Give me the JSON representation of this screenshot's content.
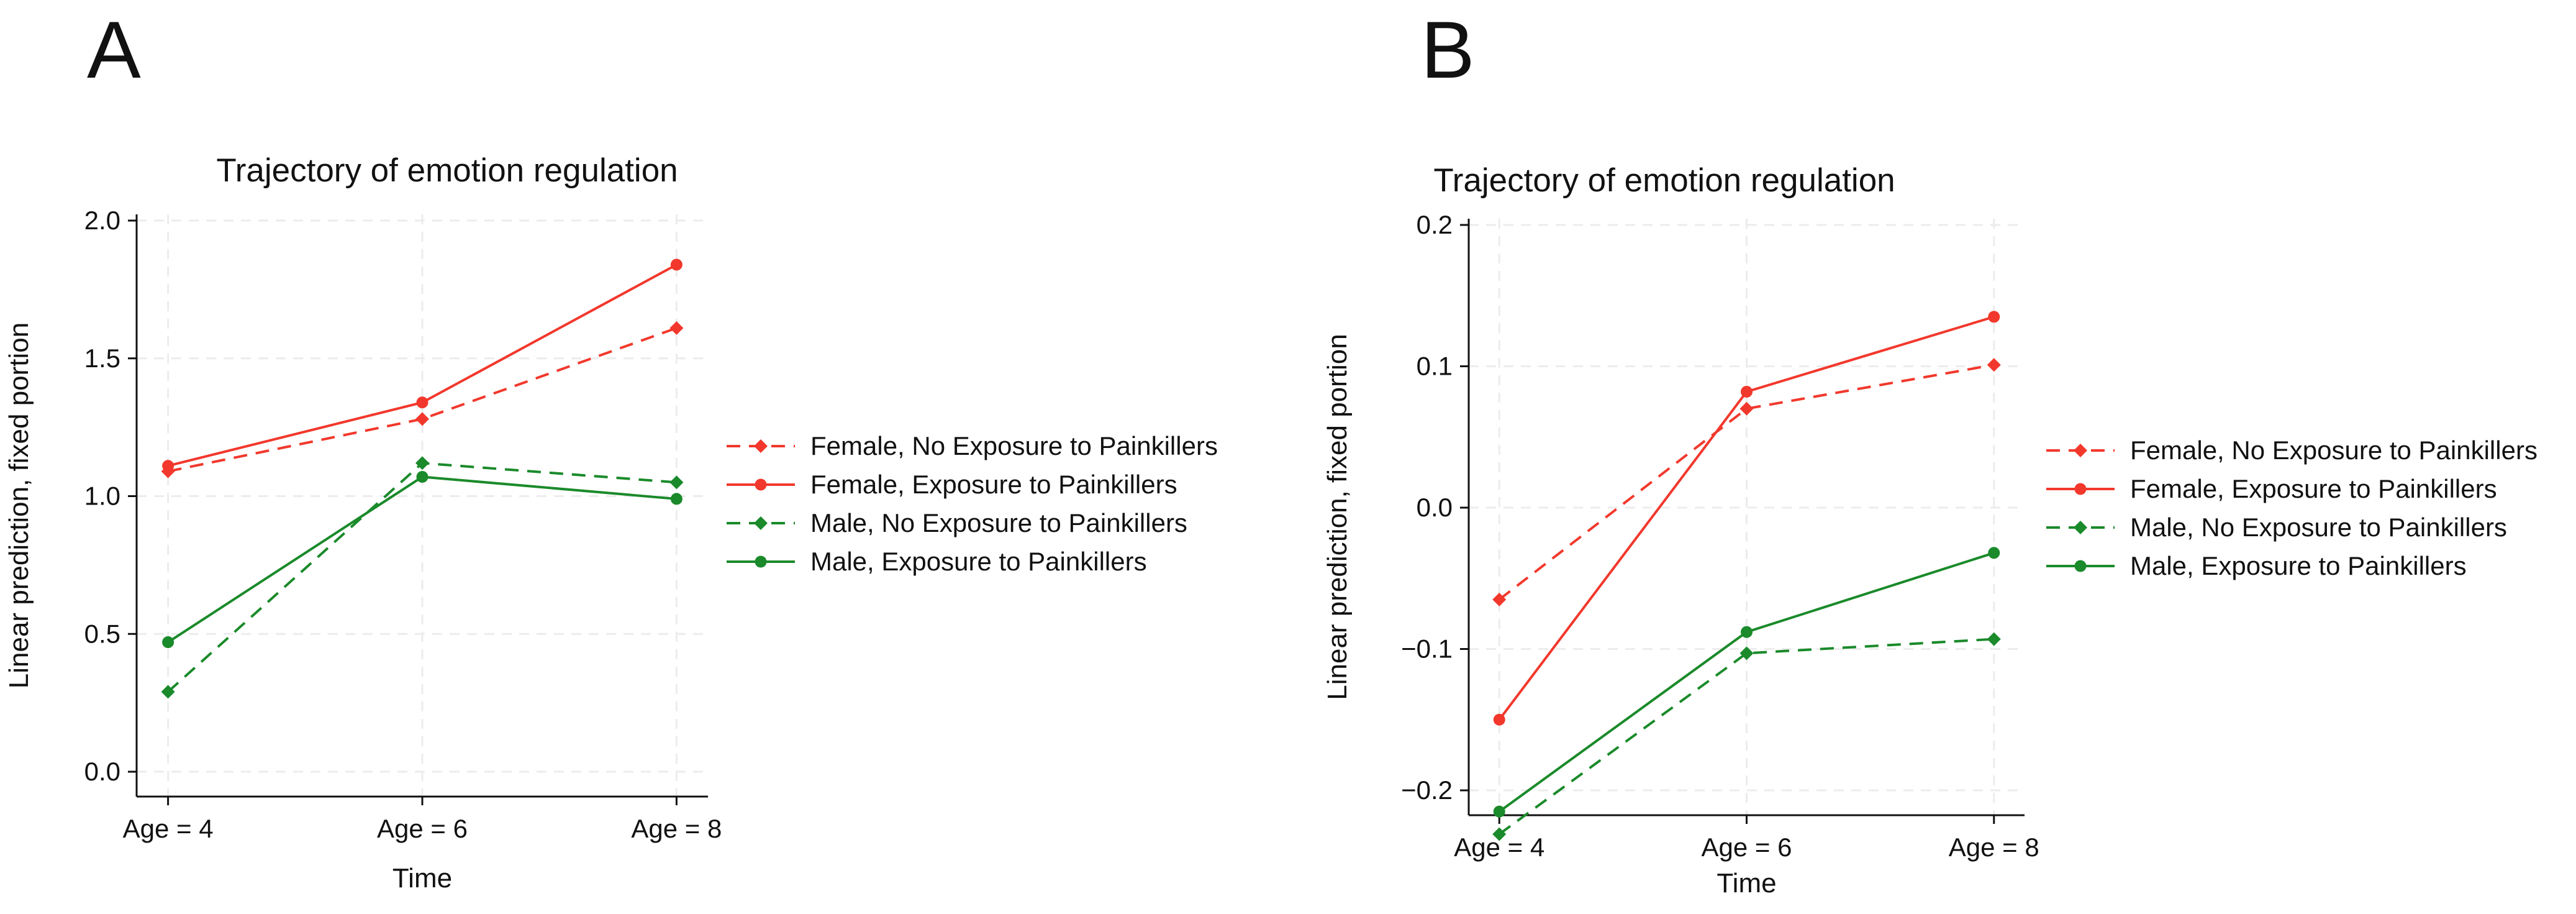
{
  "chart_data": [
    {
      "panel_label": "A",
      "type": "line",
      "title": "Trajectory of emotion regulation",
      "xlabel": "Time",
      "ylabel": "Linear prediction, fixed portion",
      "categories": [
        "Age = 4",
        "Age = 6",
        "Age = 8"
      ],
      "ylim": [
        0,
        2.0
      ],
      "yticks": [
        0,
        0.5,
        1.0,
        1.5,
        2.0
      ],
      "ytick_labels": [
        "0.0",
        "0.5",
        "1.0",
        "1.5",
        "2.0"
      ],
      "grid": true,
      "legend_position": "right",
      "series": [
        {
          "name": "Female, No Exposure to Painkillers",
          "color": "#f2382c",
          "dashed": true,
          "marker": "diamond",
          "values": [
            1.09,
            1.28,
            1.61
          ]
        },
        {
          "name": "Female, Exposure to Painkillers",
          "color": "#f2382c",
          "dashed": false,
          "marker": "circle",
          "values": [
            1.11,
            1.34,
            1.84
          ]
        },
        {
          "name": "Male, No Exposure to Painkillers",
          "color": "#1a8a2a",
          "dashed": true,
          "marker": "diamond",
          "values": [
            0.29,
            1.12,
            1.05
          ]
        },
        {
          "name": "Male, Exposure to Painkillers",
          "color": "#1a8a2a",
          "dashed": false,
          "marker": "circle",
          "values": [
            0.47,
            1.07,
            0.99
          ]
        }
      ]
    },
    {
      "panel_label": "B",
      "type": "line",
      "title": "Trajectory of emotion regulation",
      "xlabel": "Time",
      "ylabel": "Linear prediction, fixed portion",
      "categories": [
        "Age = 4",
        "Age = 6",
        "Age = 8"
      ],
      "ylim": [
        -0.2,
        0.2
      ],
      "yticks": [
        -0.2,
        -0.1,
        0.0,
        0.1,
        0.2
      ],
      "ytick_labels": [
        "−0.2",
        "−0.1",
        "0.0",
        "0.1",
        "0.2"
      ],
      "grid": true,
      "legend_position": "right",
      "series": [
        {
          "name": "Female, No Exposure to Painkillers",
          "color": "#f2382c",
          "dashed": true,
          "marker": "diamond",
          "values": [
            -0.065,
            0.07,
            0.101
          ]
        },
        {
          "name": "Female, Exposure to Painkillers",
          "color": "#f2382c",
          "dashed": false,
          "marker": "circle",
          "values": [
            -0.15,
            0.082,
            0.135
          ]
        },
        {
          "name": "Male, No Exposure to Painkillers",
          "color": "#1a8a2a",
          "dashed": true,
          "marker": "diamond",
          "values": [
            -0.231,
            -0.103,
            -0.093
          ]
        },
        {
          "name": "Male, Exposure to Painkillers",
          "color": "#1a8a2a",
          "dashed": false,
          "marker": "circle",
          "values": [
            -0.215,
            -0.088,
            -0.032
          ]
        }
      ]
    }
  ]
}
